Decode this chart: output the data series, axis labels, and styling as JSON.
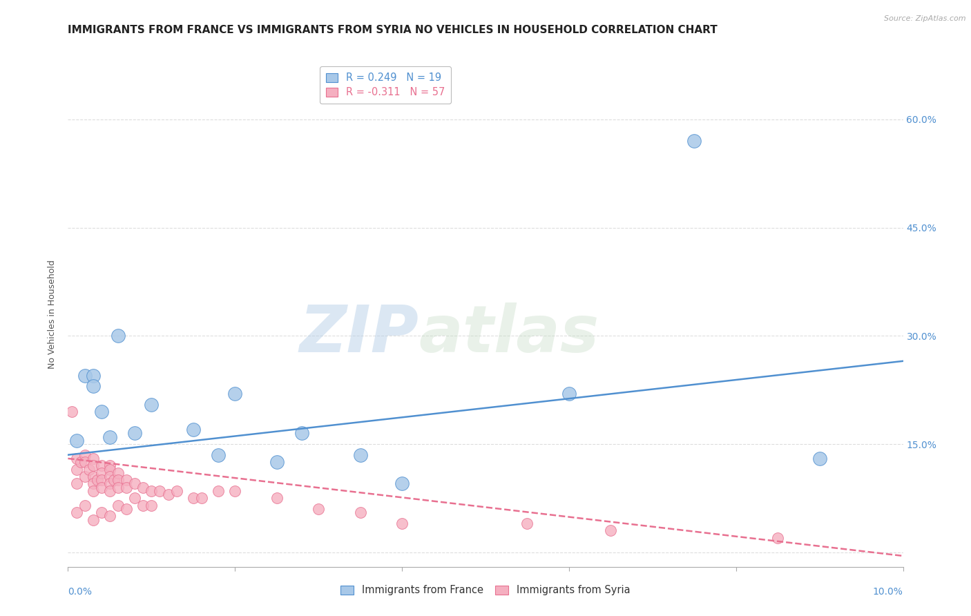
{
  "title": "IMMIGRANTS FROM FRANCE VS IMMIGRANTS FROM SYRIA NO VEHICLES IN HOUSEHOLD CORRELATION CHART",
  "source": "Source: ZipAtlas.com",
  "ylabel": "No Vehicles in Household",
  "xlim": [
    0.0,
    0.1
  ],
  "ylim": [
    -0.02,
    0.68
  ],
  "ytick_vals": [
    0.0,
    0.15,
    0.3,
    0.45,
    0.6
  ],
  "ytick_labels": [
    "",
    "15.0%",
    "30.0%",
    "45.0%",
    "60.0%"
  ],
  "xtick_vals": [
    0.0,
    0.02,
    0.04,
    0.06,
    0.08,
    0.1
  ],
  "legend_r_france": "R = 0.249",
  "legend_n_france": "N = 19",
  "legend_r_syria": "R = -0.311",
  "legend_n_syria": "N = 57",
  "color_france": "#a8c8e8",
  "color_syria": "#f5afc0",
  "line_color_france": "#5090d0",
  "line_color_syria": "#e87090",
  "watermark_zip": "ZIP",
  "watermark_atlas": "atlas",
  "background_color": "#ffffff",
  "grid_color": "#dddddd",
  "title_fontsize": 11,
  "axis_label_fontsize": 9,
  "legend_fontsize": 10.5,
  "france_x": [
    0.001,
    0.002,
    0.003,
    0.003,
    0.004,
    0.005,
    0.006,
    0.008,
    0.01,
    0.015,
    0.018,
    0.02,
    0.025,
    0.028,
    0.035,
    0.04,
    0.06,
    0.075,
    0.09
  ],
  "france_y": [
    0.155,
    0.245,
    0.245,
    0.23,
    0.195,
    0.16,
    0.3,
    0.165,
    0.205,
    0.17,
    0.135,
    0.22,
    0.125,
    0.165,
    0.135,
    0.095,
    0.22,
    0.57,
    0.13
  ],
  "syria_x": [
    0.0005,
    0.001,
    0.001,
    0.001,
    0.001,
    0.0015,
    0.002,
    0.002,
    0.002,
    0.002,
    0.0025,
    0.003,
    0.003,
    0.003,
    0.003,
    0.003,
    0.003,
    0.0035,
    0.004,
    0.004,
    0.004,
    0.004,
    0.004,
    0.005,
    0.005,
    0.005,
    0.005,
    0.005,
    0.005,
    0.0055,
    0.006,
    0.006,
    0.006,
    0.006,
    0.007,
    0.007,
    0.007,
    0.008,
    0.008,
    0.009,
    0.009,
    0.01,
    0.01,
    0.011,
    0.012,
    0.013,
    0.015,
    0.016,
    0.018,
    0.02,
    0.025,
    0.03,
    0.035,
    0.04,
    0.055,
    0.065,
    0.085
  ],
  "syria_y": [
    0.195,
    0.13,
    0.115,
    0.095,
    0.055,
    0.125,
    0.135,
    0.125,
    0.105,
    0.065,
    0.115,
    0.13,
    0.12,
    0.105,
    0.095,
    0.085,
    0.045,
    0.1,
    0.12,
    0.11,
    0.1,
    0.09,
    0.055,
    0.12,
    0.115,
    0.105,
    0.095,
    0.085,
    0.05,
    0.1,
    0.11,
    0.1,
    0.09,
    0.065,
    0.1,
    0.09,
    0.06,
    0.095,
    0.075,
    0.09,
    0.065,
    0.085,
    0.065,
    0.085,
    0.08,
    0.085,
    0.075,
    0.075,
    0.085,
    0.085,
    0.075,
    0.06,
    0.055,
    0.04,
    0.04,
    0.03,
    0.02
  ],
  "france_line_x": [
    0.0,
    0.1
  ],
  "france_line_y": [
    0.135,
    0.265
  ],
  "syria_line_x": [
    0.0,
    0.1
  ],
  "syria_line_y": [
    0.13,
    -0.005
  ]
}
